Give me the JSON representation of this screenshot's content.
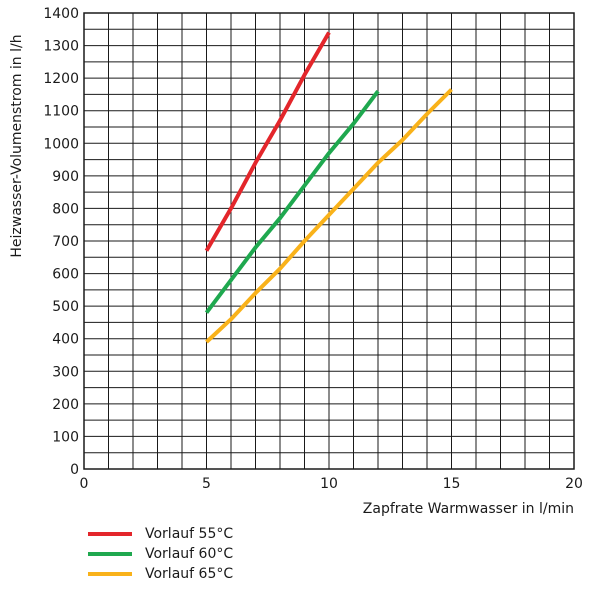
{
  "chart_data": {
    "type": "line",
    "xlabel": "Zapfrate Warmwasser in l/min",
    "ylabel": "Heizwasser-Volumenstrom in l/h",
    "xlim": [
      0,
      20
    ],
    "ylim": [
      0,
      1400
    ],
    "x_ticks": [
      "0",
      "5",
      "10",
      "15",
      "20"
    ],
    "y_ticks": [
      "0",
      "100",
      "200",
      "300",
      "400",
      "500",
      "600",
      "700",
      "800",
      "900",
      "1000",
      "1100",
      "1200",
      "1300",
      "1400"
    ],
    "x_minor_step": 1,
    "y_minor_step": 50,
    "grid": true,
    "legend_position": "bottom-left",
    "series": [
      {
        "name": "Vorlauf 55°C",
        "color": "#e3262b",
        "points": [
          [
            5,
            670
          ],
          [
            6,
            800
          ],
          [
            7,
            940
          ],
          [
            8,
            1070
          ],
          [
            9,
            1210
          ],
          [
            10,
            1340
          ]
        ]
      },
      {
        "name": "Vorlauf 60°C",
        "color": "#1fa84f",
        "points": [
          [
            5,
            480
          ],
          [
            6,
            580
          ],
          [
            7,
            680
          ],
          [
            8,
            770
          ],
          [
            9,
            870
          ],
          [
            10,
            970
          ],
          [
            11,
            1060
          ],
          [
            12,
            1160
          ]
        ]
      },
      {
        "name": "Vorlauf 65°C",
        "color": "#f9b21a",
        "points": [
          [
            5,
            390
          ],
          [
            6,
            460
          ],
          [
            7,
            540
          ],
          [
            8,
            615
          ],
          [
            9,
            700
          ],
          [
            10,
            780
          ],
          [
            11,
            860
          ],
          [
            12,
            940
          ],
          [
            13,
            1010
          ],
          [
            14,
            1090
          ],
          [
            15,
            1165
          ]
        ]
      }
    ]
  }
}
